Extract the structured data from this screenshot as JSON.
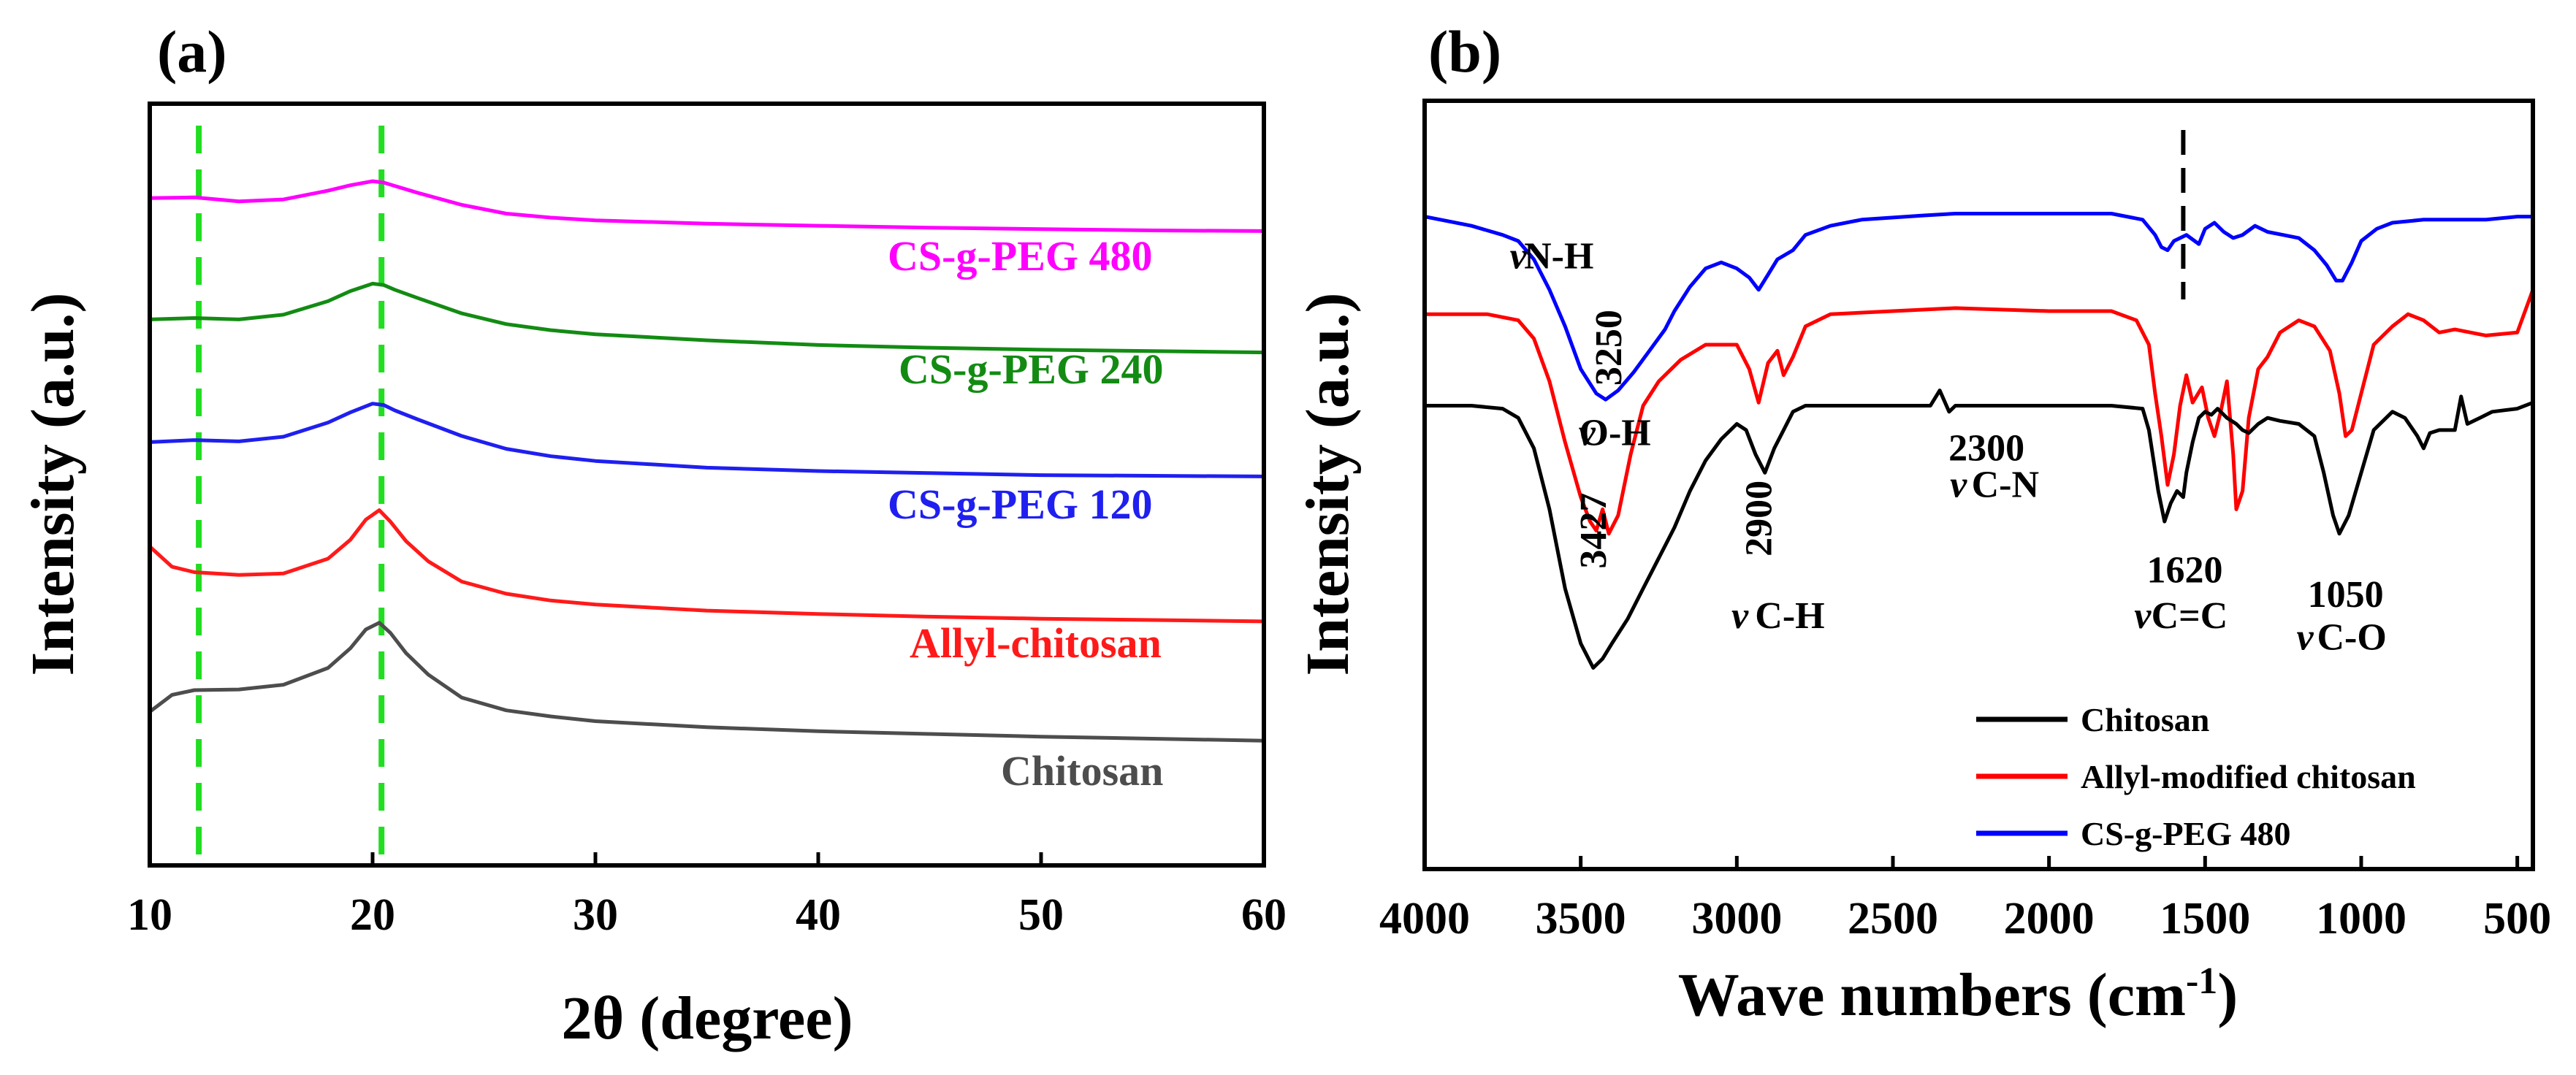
{
  "chart_data": [
    {
      "panel": "(a)",
      "type": "line",
      "title": "",
      "xlabel": "2θ (degree)",
      "ylabel": "Intensity (a.u.)",
      "xlim": [
        10,
        60
      ],
      "xticks": [
        10,
        20,
        30,
        40,
        50,
        60
      ],
      "yticks": "none",
      "grid": false,
      "reference_lines": [
        {
          "x": 12.2,
          "style": "dashed",
          "color": "#22dd22"
        },
        {
          "x": 20.4,
          "style": "dashed",
          "color": "#22dd22"
        }
      ],
      "series": [
        {
          "name": "CS-g-PEG 480",
          "color": "#ff00ff",
          "x": [
            10,
            12,
            14,
            16,
            18,
            19,
            20,
            20.5,
            21,
            22,
            24,
            26,
            28,
            30,
            35,
            40,
            45,
            50,
            55,
            60
          ],
          "y": [
            8.35,
            8.36,
            8.3,
            8.33,
            8.46,
            8.54,
            8.6,
            8.58,
            8.53,
            8.43,
            8.25,
            8.12,
            8.06,
            8.02,
            7.97,
            7.94,
            7.91,
            7.89,
            7.87,
            7.86
          ]
        },
        {
          "name": "CS-g-PEG 240",
          "color": "#138b13",
          "x": [
            10,
            12,
            14,
            16,
            18,
            19,
            20,
            20.5,
            21,
            22,
            24,
            26,
            28,
            30,
            35,
            40,
            45,
            50,
            55,
            60
          ],
          "y": [
            6.55,
            6.57,
            6.55,
            6.62,
            6.82,
            6.97,
            7.08,
            7.06,
            6.99,
            6.87,
            6.64,
            6.48,
            6.39,
            6.33,
            6.24,
            6.17,
            6.13,
            6.1,
            6.08,
            6.06
          ]
        },
        {
          "name": "CS-g-PEG 120",
          "color": "#1f1ff0",
          "x": [
            10,
            12,
            14,
            16,
            18,
            19,
            20,
            20.5,
            21,
            22,
            24,
            26,
            28,
            30,
            35,
            40,
            45,
            50,
            55,
            60
          ],
          "y": [
            4.73,
            4.76,
            4.74,
            4.81,
            5.02,
            5.17,
            5.3,
            5.28,
            5.2,
            5.07,
            4.82,
            4.63,
            4.52,
            4.45,
            4.35,
            4.3,
            4.27,
            4.24,
            4.23,
            4.22
          ]
        },
        {
          "name": "Allyl-chitosan",
          "color": "#ff1a1a",
          "x": [
            10,
            11,
            12,
            14,
            16,
            18,
            19,
            19.7,
            20.3,
            20.8,
            21.5,
            22.5,
            24,
            26,
            28,
            30,
            35,
            40,
            45,
            50,
            55,
            60
          ],
          "y": [
            3.18,
            2.88,
            2.8,
            2.76,
            2.78,
            3.0,
            3.28,
            3.58,
            3.72,
            3.55,
            3.26,
            2.96,
            2.66,
            2.48,
            2.38,
            2.32,
            2.23,
            2.18,
            2.14,
            2.11,
            2.09,
            2.07
          ]
        },
        {
          "name": "Chitosan",
          "color": "#4d4d4d",
          "x": [
            10,
            11,
            12,
            14,
            16,
            18,
            19,
            19.7,
            20.3,
            20.8,
            21.5,
            22.5,
            24,
            26,
            28,
            30,
            35,
            40,
            45,
            50,
            55,
            60
          ],
          "y": [
            0.73,
            0.98,
            1.05,
            1.06,
            1.13,
            1.38,
            1.67,
            1.95,
            2.05,
            1.9,
            1.6,
            1.28,
            0.94,
            0.75,
            0.66,
            0.59,
            0.5,
            0.44,
            0.4,
            0.36,
            0.33,
            0.3
          ]
        }
      ],
      "labels": [
        "CS-g-PEG 480",
        "CS-g-PEG 240",
        "CS-g-PEG 120",
        "Allyl-chitosan",
        "Chitosan"
      ]
    },
    {
      "panel": "(b)",
      "type": "line",
      "title": "",
      "xlabel": "Wave numbers (cm",
      "xlabel_sup": "-1",
      "xlabel_end": ")",
      "ylabel": "Intensity (a.u.)",
      "xlim": [
        4000,
        450
      ],
      "xticks": [
        4000,
        3500,
        3000,
        2500,
        2000,
        1500,
        1000,
        500
      ],
      "yticks": "none",
      "grid": false,
      "reference_lines": [
        {
          "x": 1570,
          "style": "dashed",
          "color": "#000000"
        }
      ],
      "legend_position": "bottom-right",
      "series": [
        {
          "name": "CS-g-PEG 480",
          "color": "#0000ff",
          "x": [
            4000,
            3850,
            3750,
            3700,
            3650,
            3600,
            3550,
            3500,
            3450,
            3420,
            3380,
            3330,
            3280,
            3230,
            3200,
            3150,
            3100,
            3050,
            3000,
            2960,
            2930,
            2900,
            2870,
            2820,
            2780,
            2700,
            2600,
            2400,
            2300,
            2000,
            1800,
            1700,
            1660,
            1640,
            1620,
            1600,
            1560,
            1520,
            1500,
            1470,
            1440,
            1410,
            1380,
            1340,
            1300,
            1250,
            1200,
            1150,
            1110,
            1080,
            1060,
            1030,
            1000,
            950,
            900,
            800,
            700,
            600,
            500,
            450
          ],
          "y": [
            8.1,
            7.95,
            7.8,
            7.7,
            7.4,
            6.9,
            6.3,
            5.6,
            5.2,
            5.1,
            5.25,
            5.55,
            5.9,
            6.25,
            6.55,
            6.95,
            7.25,
            7.35,
            7.25,
            7.1,
            6.9,
            7.15,
            7.4,
            7.55,
            7.8,
            7.95,
            8.05,
            8.12,
            8.15,
            8.15,
            8.15,
            8.05,
            7.8,
            7.6,
            7.55,
            7.7,
            7.8,
            7.65,
            7.9,
            8.0,
            7.85,
            7.75,
            7.8,
            7.95,
            7.85,
            7.8,
            7.75,
            7.55,
            7.3,
            7.05,
            7.05,
            7.35,
            7.7,
            7.9,
            8.0,
            8.05,
            8.05,
            8.05,
            8.1,
            8.1
          ]
        },
        {
          "name": "Allyl-modified chitosan",
          "color": "#ff0000",
          "x": [
            4000,
            3800,
            3700,
            3650,
            3600,
            3550,
            3500,
            3470,
            3450,
            3430,
            3410,
            3380,
            3340,
            3300,
            3250,
            3180,
            3100,
            3000,
            2960,
            2930,
            2900,
            2870,
            2850,
            2820,
            2780,
            2700,
            2500,
            2300,
            2000,
            1800,
            1720,
            1680,
            1660,
            1640,
            1620,
            1600,
            1580,
            1560,
            1540,
            1510,
            1490,
            1470,
            1450,
            1430,
            1410,
            1400,
            1380,
            1360,
            1330,
            1300,
            1260,
            1200,
            1150,
            1100,
            1070,
            1050,
            1030,
            1000,
            960,
            900,
            850,
            800,
            750,
            700,
            600,
            500,
            450
          ],
          "y": [
            6.5,
            6.5,
            6.4,
            6.1,
            5.4,
            4.4,
            3.5,
            3.1,
            2.95,
            3.3,
            2.9,
            3.2,
            4.2,
            5.0,
            5.4,
            5.75,
            6.0,
            6.0,
            5.6,
            5.05,
            5.7,
            5.9,
            5.5,
            5.8,
            6.3,
            6.5,
            6.55,
            6.6,
            6.55,
            6.55,
            6.4,
            6.0,
            5.2,
            4.5,
            3.7,
            4.2,
            5.0,
            5.5,
            5.05,
            5.3,
            4.8,
            4.5,
            4.9,
            5.4,
            4.2,
            3.3,
            3.6,
            4.8,
            5.6,
            5.8,
            6.2,
            6.4,
            6.3,
            5.9,
            5.2,
            4.5,
            4.6,
            5.2,
            6.0,
            6.3,
            6.5,
            6.4,
            6.2,
            6.25,
            6.15,
            6.2,
            6.9
          ]
        },
        {
          "name": "Chitosan",
          "color": "#000000",
          "x": [
            4000,
            3850,
            3750,
            3700,
            3650,
            3600,
            3550,
            3500,
            3460,
            3430,
            3400,
            3350,
            3300,
            3250,
            3200,
            3150,
            3100,
            3050,
            3000,
            2970,
            2940,
            2910,
            2880,
            2850,
            2820,
            2780,
            2700,
            2500,
            2380,
            2350,
            2320,
            2300,
            2000,
            1800,
            1700,
            1680,
            1650,
            1630,
            1610,
            1590,
            1570,
            1560,
            1540,
            1520,
            1500,
            1480,
            1460,
            1430,
            1400,
            1380,
            1360,
            1330,
            1300,
            1260,
            1200,
            1150,
            1120,
            1090,
            1070,
            1040,
            1000,
            960,
            900,
            860,
            820,
            800,
            780,
            750,
            700,
            680,
            660,
            620,
            580,
            500,
            450
          ],
          "y": [
            5.0,
            5.0,
            4.95,
            4.8,
            4.3,
            3.3,
            2.0,
            1.1,
            0.7,
            0.85,
            1.1,
            1.5,
            2.0,
            2.5,
            3.0,
            3.6,
            4.1,
            4.45,
            4.7,
            4.6,
            4.2,
            3.9,
            4.3,
            4.6,
            4.9,
            5.0,
            5.0,
            5.0,
            5.0,
            5.25,
            4.9,
            5.0,
            5.0,
            5.0,
            4.95,
            4.6,
            3.6,
            3.1,
            3.4,
            3.6,
            3.5,
            3.9,
            4.4,
            4.8,
            4.9,
            4.85,
            4.95,
            4.8,
            4.7,
            4.6,
            4.55,
            4.7,
            4.8,
            4.75,
            4.7,
            4.5,
            3.9,
            3.2,
            2.9,
            3.2,
            3.9,
            4.6,
            4.9,
            4.8,
            4.5,
            4.3,
            4.55,
            4.6,
            4.6,
            5.15,
            4.7,
            4.8,
            4.9,
            4.95,
            5.05
          ]
        }
      ],
      "annotations": [
        {
          "id": "nh-sym",
          "text": "ν",
          "x": 3700,
          "y": 7.25
        },
        {
          "id": "nh-lbl",
          "text": "N-H",
          "x": 3570,
          "y": 7.25
        },
        {
          "id": "n3250",
          "text": "3250",
          "x": 3370,
          "y": 5.95
        },
        {
          "id": "oh-sym",
          "text": "ν",
          "x": 3480,
          "y": 4.35
        },
        {
          "id": "oh-lbl",
          "text": "O-H",
          "x": 3390,
          "y": 4.35
        },
        {
          "id": "n3427",
          "text": "3427",
          "x": 3420,
          "y": 2.95
        },
        {
          "id": "n2900",
          "text": "2900",
          "x": 2890,
          "y": 3.15
        },
        {
          "id": "ch-sym",
          "text": "ν",
          "x": 2990,
          "y": 1.35
        },
        {
          "id": "ch-lbl",
          "text": "C-H",
          "x": 2830,
          "y": 1.35
        },
        {
          "id": "n2300",
          "text": "2300",
          "x": 2200,
          "y": 4.1
        },
        {
          "id": "cn-sym",
          "text": "ν",
          "x": 2290,
          "y": 3.5
        },
        {
          "id": "cn-lbl",
          "text": "C-N",
          "x": 2140,
          "y": 3.5
        },
        {
          "id": "n1620",
          "text": "1620",
          "x": 1565,
          "y": 2.1
        },
        {
          "id": "cc-sym",
          "text": "ν",
          "x": 1700,
          "y": 1.35
        },
        {
          "id": "cc-lbl",
          "text": "C=C",
          "x": 1550,
          "y": 1.35
        },
        {
          "id": "n1050",
          "text": "1050",
          "x": 1050,
          "y": 1.7
        },
        {
          "id": "co-sym",
          "text": "ν",
          "x": 1180,
          "y": 1.0
        },
        {
          "id": "co-lbl",
          "text": "C-O",
          "x": 1030,
          "y": 1.0
        }
      ]
    }
  ]
}
